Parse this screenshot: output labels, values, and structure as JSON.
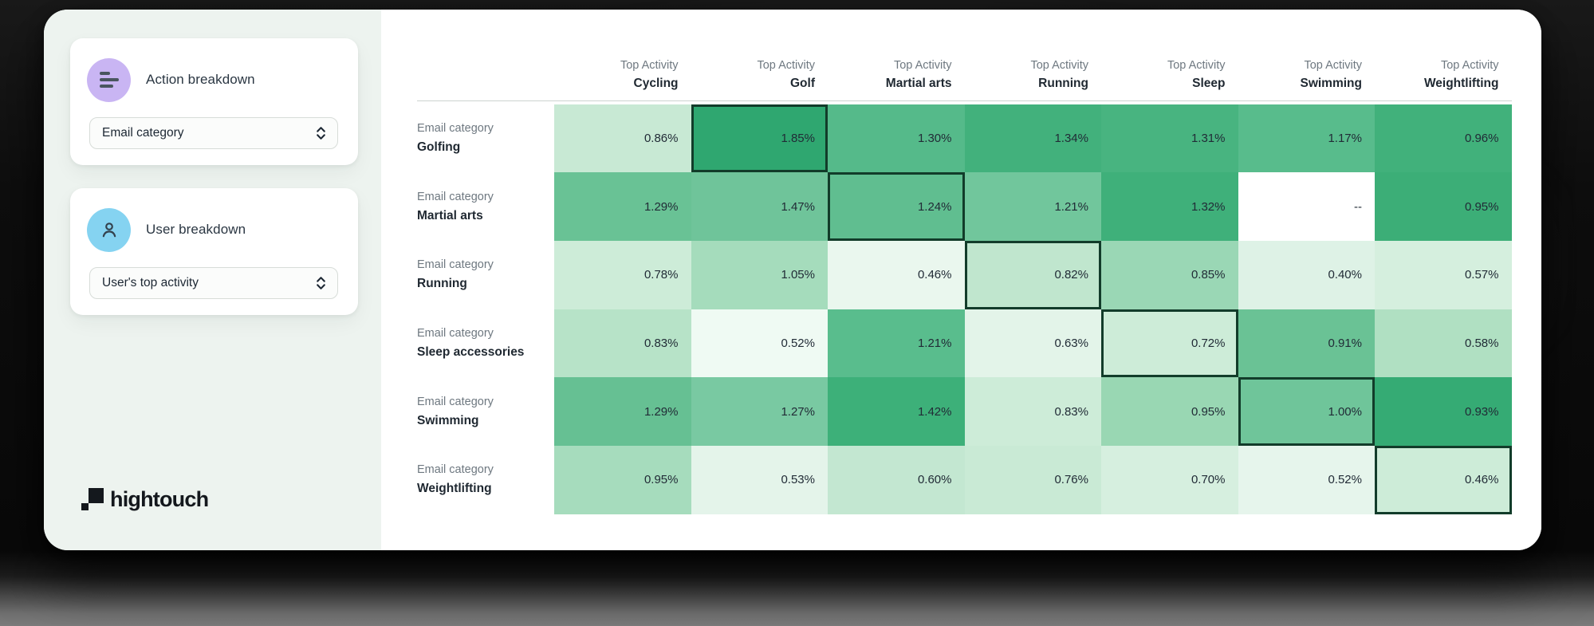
{
  "sidebar": {
    "panels": [
      {
        "icon": "action-breakdown-icon",
        "icon_bg": "#c9b5f3",
        "title": "Action breakdown",
        "select_value": "Email category"
      },
      {
        "icon": "user-icon",
        "icon_bg": "#85d3f1",
        "title": "User breakdown",
        "select_value": "User's top activity"
      }
    ],
    "logo_text": "hightouch"
  },
  "chart_data": {
    "type": "heatmap",
    "column_header_prefix": "Top Activity",
    "row_header_prefix": "Email category",
    "columns": [
      "Cycling",
      "Golf",
      "Martial arts",
      "Running",
      "Sleep",
      "Swimming",
      "Weightlifting"
    ],
    "rows": [
      "Golfing",
      "Martial arts",
      "Running",
      "Sleep accessories",
      "Swimming",
      "Weightlifting"
    ],
    "missing_value_display": "--",
    "highlight_border_color": "#123c2a",
    "palette": {
      "min_color": "#f1faf4",
      "max_color": "#2fa770",
      "missing_color": "#ffffff"
    },
    "cells": [
      [
        {
          "pct": 0.86,
          "display": "0.86%",
          "color": "#c8e9d4",
          "highlighted": false
        },
        {
          "pct": 1.85,
          "display": "1.85%",
          "color": "#2fa770",
          "highlighted": true
        },
        {
          "pct": 1.3,
          "display": "1.30%",
          "color": "#55ba8a",
          "highlighted": false
        },
        {
          "pct": 1.34,
          "display": "1.34%",
          "color": "#42b17c",
          "highlighted": false
        },
        {
          "pct": 1.31,
          "display": "1.31%",
          "color": "#48b480",
          "highlighted": false
        },
        {
          "pct": 1.17,
          "display": "1.17%",
          "color": "#58bc8c",
          "highlighted": false
        },
        {
          "pct": 0.96,
          "display": "0.96%",
          "color": "#41b17b",
          "highlighted": false
        }
      ],
      [
        {
          "pct": 1.29,
          "display": "1.29%",
          "color": "#69c295",
          "highlighted": false
        },
        {
          "pct": 1.47,
          "display": "1.47%",
          "color": "#6fc49a",
          "highlighted": false
        },
        {
          "pct": 1.24,
          "display": "1.24%",
          "color": "#60be90",
          "highlighted": true
        },
        {
          "pct": 1.21,
          "display": "1.21%",
          "color": "#71c69c",
          "highlighted": false
        },
        {
          "pct": 1.32,
          "display": "1.32%",
          "color": "#3fb07a",
          "highlighted": false
        },
        {
          "pct": null,
          "display": "--",
          "color": "#ffffff",
          "highlighted": false
        },
        {
          "pct": 0.95,
          "display": "0.95%",
          "color": "#3cae77",
          "highlighted": false
        }
      ],
      [
        {
          "pct": 0.78,
          "display": "0.78%",
          "color": "#cdecd8",
          "highlighted": false
        },
        {
          "pct": 1.05,
          "display": "1.05%",
          "color": "#a5dcbc",
          "highlighted": false
        },
        {
          "pct": 0.46,
          "display": "0.46%",
          "color": "#eaf7ee",
          "highlighted": false
        },
        {
          "pct": 0.82,
          "display": "0.82%",
          "color": "#c0e6ce",
          "highlighted": true
        },
        {
          "pct": 0.85,
          "display": "0.85%",
          "color": "#9ad7b5",
          "highlighted": false
        },
        {
          "pct": 0.4,
          "display": "0.40%",
          "color": "#def2e6",
          "highlighted": false
        },
        {
          "pct": 0.57,
          "display": "0.57%",
          "color": "#d5efde",
          "highlighted": false
        }
      ],
      [
        {
          "pct": 0.83,
          "display": "0.83%",
          "color": "#b7e3c8",
          "highlighted": false
        },
        {
          "pct": 0.52,
          "display": "0.52%",
          "color": "#effaf3",
          "highlighted": false
        },
        {
          "pct": 1.21,
          "display": "1.21%",
          "color": "#59bd8d",
          "highlighted": false
        },
        {
          "pct": 0.63,
          "display": "0.63%",
          "color": "#e3f4e9",
          "highlighted": false
        },
        {
          "pct": 0.72,
          "display": "0.72%",
          "color": "#cdecd8",
          "highlighted": true
        },
        {
          "pct": 0.91,
          "display": "0.91%",
          "color": "#6ac295",
          "highlighted": false
        },
        {
          "pct": 0.58,
          "display": "0.58%",
          "color": "#b0e0c2",
          "highlighted": false
        }
      ],
      [
        {
          "pct": 1.29,
          "display": "1.29%",
          "color": "#66c093",
          "highlighted": false
        },
        {
          "pct": 1.27,
          "display": "1.27%",
          "color": "#79c9a2",
          "highlighted": false
        },
        {
          "pct": 1.42,
          "display": "1.42%",
          "color": "#3db079",
          "highlighted": false
        },
        {
          "pct": 0.83,
          "display": "0.83%",
          "color": "#cdecd8",
          "highlighted": false
        },
        {
          "pct": 0.95,
          "display": "0.95%",
          "color": "#99d7b3",
          "highlighted": false
        },
        {
          "pct": 1.0,
          "display": "1.00%",
          "color": "#6fc59a",
          "highlighted": true
        },
        {
          "pct": 0.93,
          "display": "0.93%",
          "color": "#35ab74",
          "highlighted": false
        }
      ],
      [
        {
          "pct": 0.95,
          "display": "0.95%",
          "color": "#a6dcbd",
          "highlighted": false
        },
        {
          "pct": 0.53,
          "display": "0.53%",
          "color": "#e4f4ea",
          "highlighted": false
        },
        {
          "pct": 0.6,
          "display": "0.60%",
          "color": "#c3e7d1",
          "highlighted": false
        },
        {
          "pct": 0.76,
          "display": "0.76%",
          "color": "#c9ead5",
          "highlighted": false
        },
        {
          "pct": 0.7,
          "display": "0.70%",
          "color": "#d6efdf",
          "highlighted": false
        },
        {
          "pct": 0.52,
          "display": "0.52%",
          "color": "#e6f5ec",
          "highlighted": false
        },
        {
          "pct": 0.46,
          "display": "0.46%",
          "color": "#cdecd8",
          "highlighted": true
        }
      ]
    ]
  }
}
